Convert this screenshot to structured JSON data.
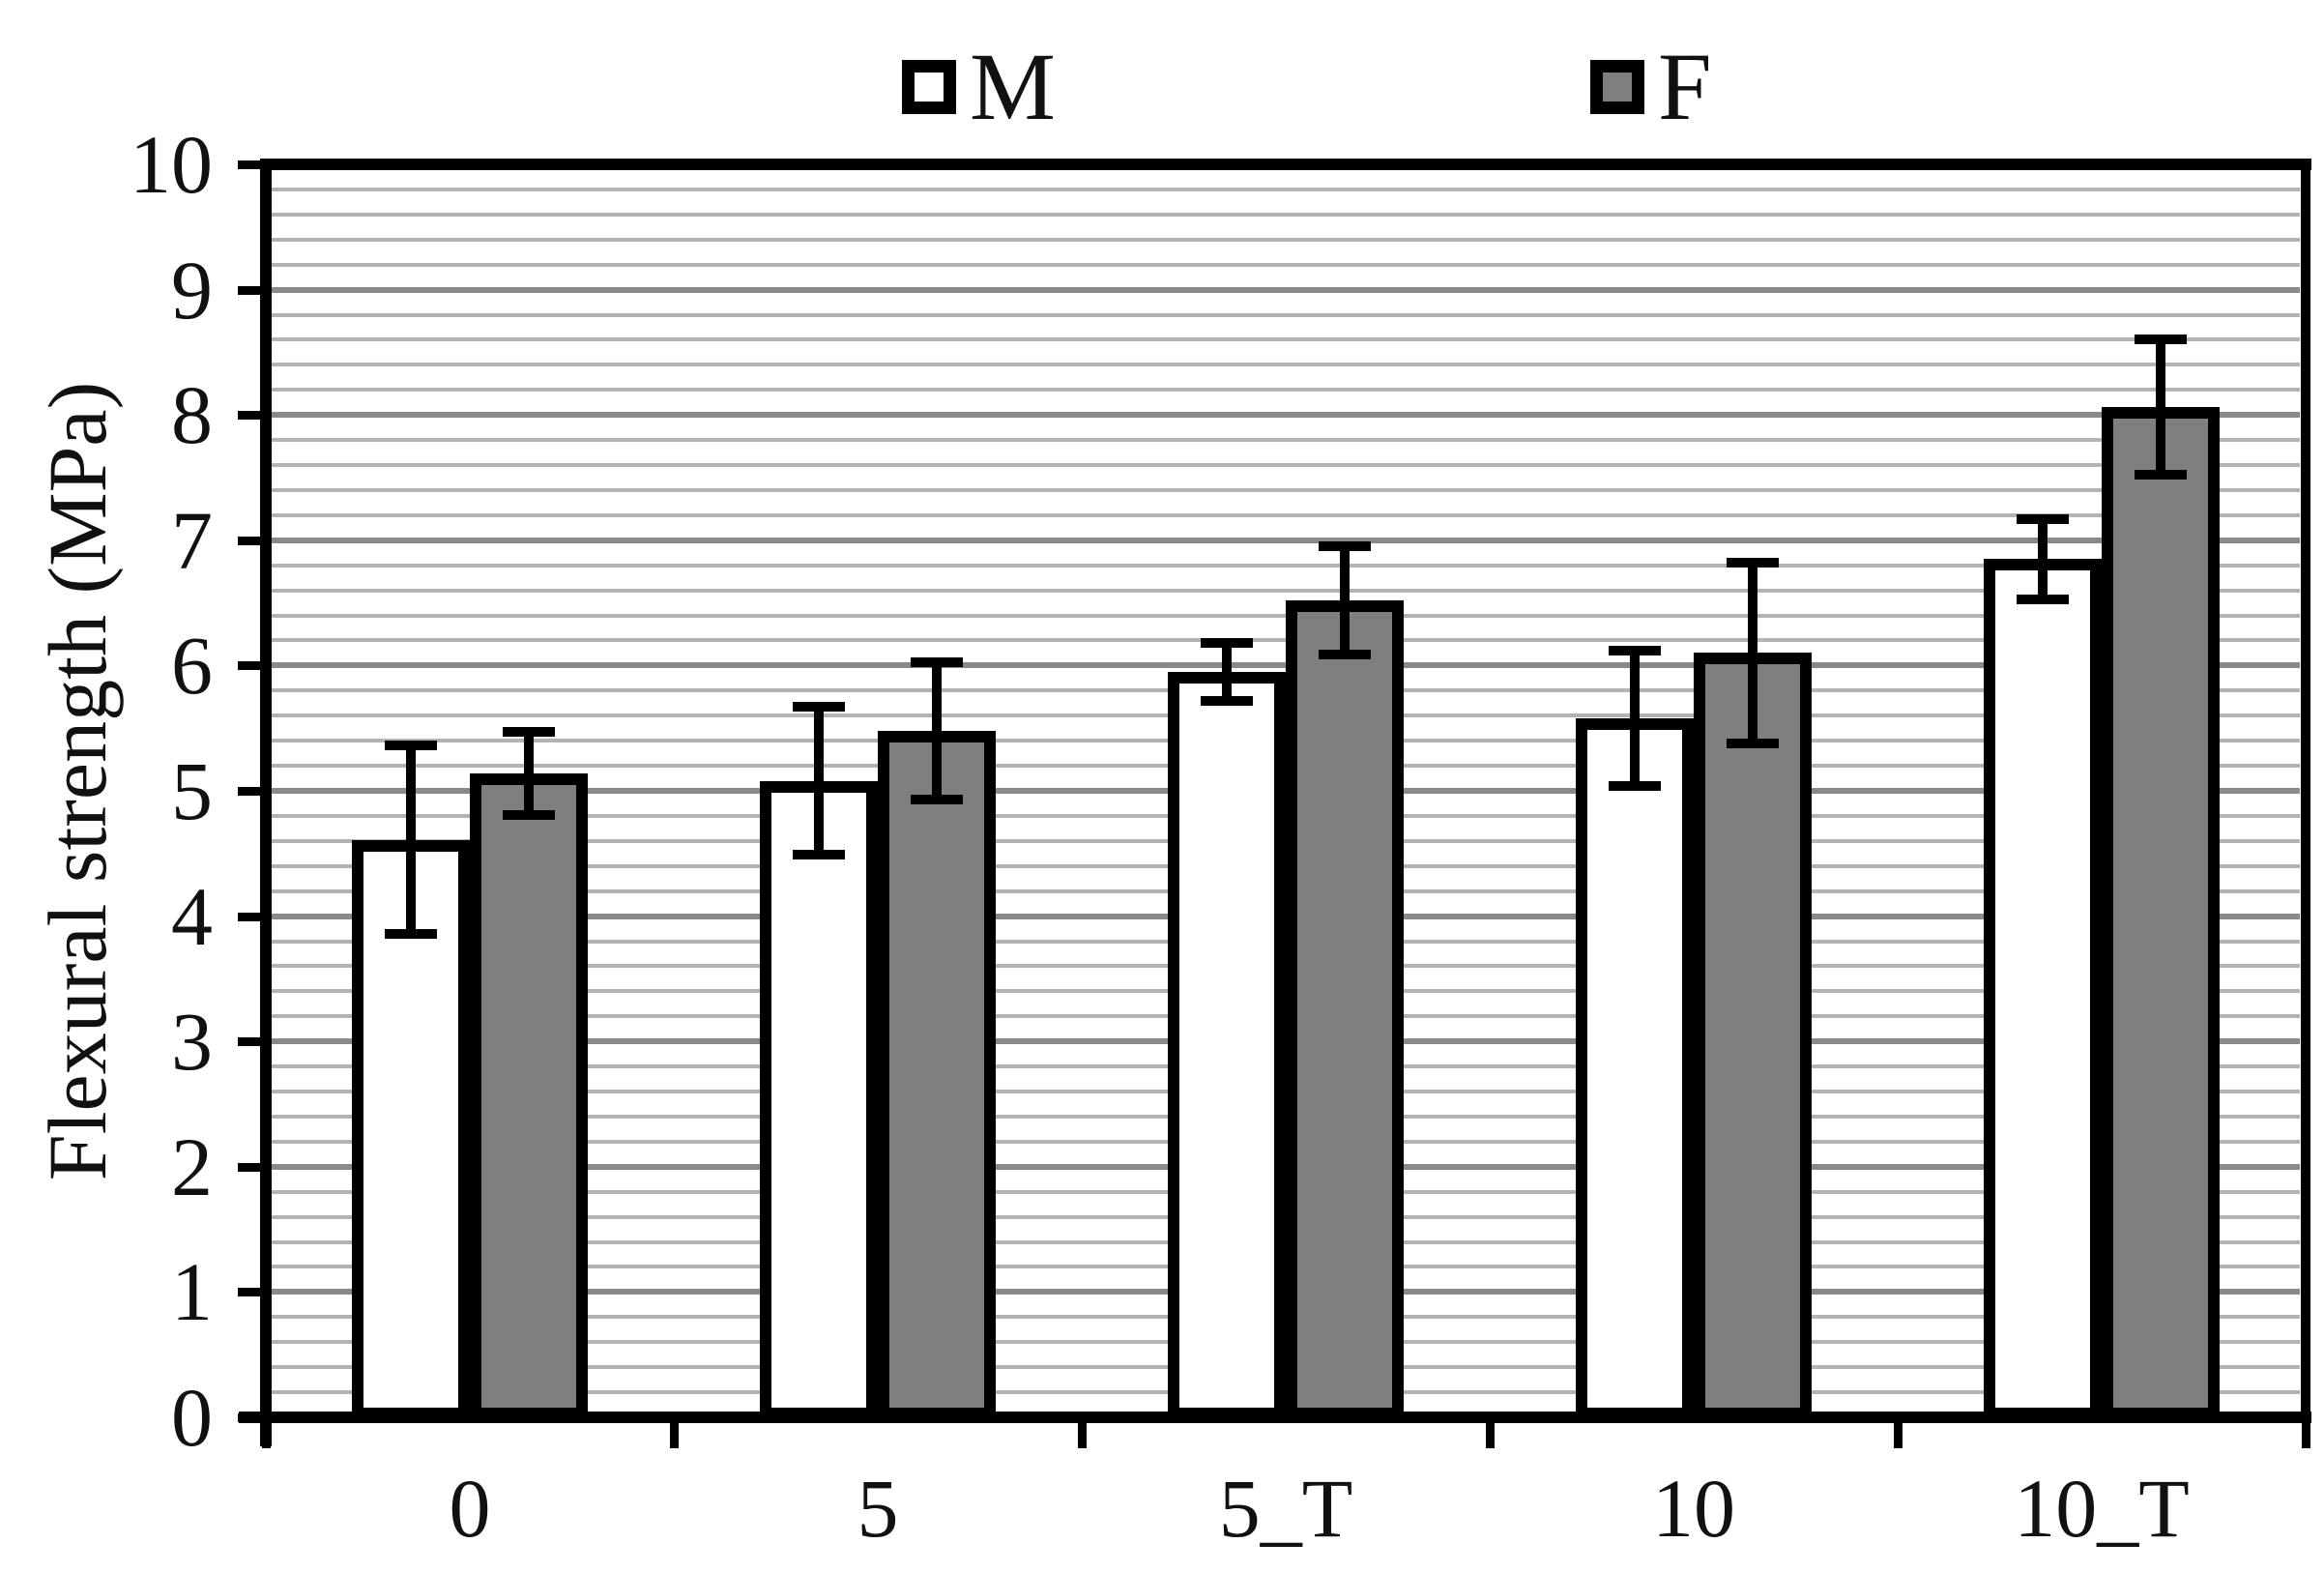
{
  "figure": {
    "background": "#ffffff",
    "text_color": "#111111",
    "axis_color": "#000000",
    "minor_grid_color": "#b3b3b3",
    "major_grid_color": "#8a8a8a"
  },
  "legend": {
    "position": "top",
    "items": [
      {
        "label": "M",
        "swatch_fill": "#ffffff",
        "swatch_border": "#000000"
      },
      {
        "label": "F",
        "swatch_fill": "#7f7f7f",
        "swatch_border": "#000000"
      }
    ]
  },
  "chart_data": {
    "type": "bar",
    "title": "",
    "xlabel": "",
    "ylabel": "Flexural strength (MPa)",
    "categories": [
      "0",
      "5",
      "5_T",
      "10",
      "10_T"
    ],
    "series": [
      {
        "name": "M",
        "fill": "#ffffff",
        "border": "#000000",
        "values": [
          4.61,
          5.08,
          5.95,
          5.58,
          6.85
        ],
        "errors": [
          0.75,
          0.59,
          0.23,
          0.54,
          0.32
        ]
      },
      {
        "name": "F",
        "fill": "#7f7f7f",
        "border": "#000000",
        "values": [
          5.14,
          5.48,
          6.52,
          6.1,
          8.06
        ],
        "errors": [
          0.33,
          0.55,
          0.43,
          0.72,
          0.54
        ]
      }
    ],
    "ylim": [
      0,
      10
    ],
    "ytick_step": 1,
    "ytick_labels": [
      "0",
      "1",
      "2",
      "3",
      "4",
      "5",
      "6",
      "7",
      "8",
      "9",
      "10"
    ],
    "minor_grid_step": 0.2,
    "gridlines": "horizontal",
    "error_bars": true,
    "legend_position": "top-center"
  }
}
